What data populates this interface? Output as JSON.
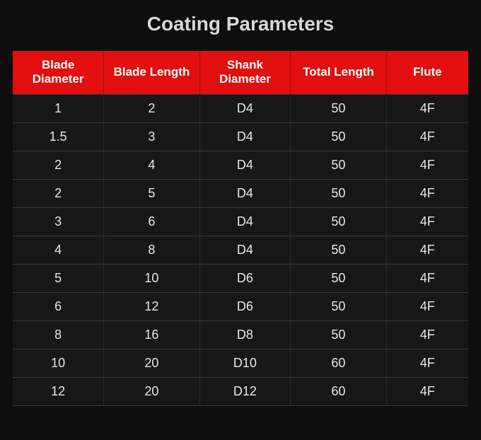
{
  "title": "Coating Parameters",
  "table": {
    "columns": [
      "Blade Diameter",
      "Blade Length",
      "Shank Diameter",
      "Total Length",
      "Flute"
    ],
    "rows": [
      [
        "1",
        "2",
        "D4",
        "50",
        "4F"
      ],
      [
        "1.5",
        "3",
        "D4",
        "50",
        "4F"
      ],
      [
        "2",
        "4",
        "D4",
        "50",
        "4F"
      ],
      [
        "2",
        "5",
        "D4",
        "50",
        "4F"
      ],
      [
        "3",
        "6",
        "D4",
        "50",
        "4F"
      ],
      [
        "4",
        "8",
        "D4",
        "50",
        "4F"
      ],
      [
        "5",
        "10",
        "D6",
        "50",
        "4F"
      ],
      [
        "6",
        "12",
        "D6",
        "50",
        "4F"
      ],
      [
        "8",
        "16",
        "D8",
        "50",
        "4F"
      ],
      [
        "10",
        "20",
        "D10",
        "60",
        "4F"
      ],
      [
        "12",
        "20",
        "D12",
        "60",
        "4F"
      ]
    ],
    "header_bg": "#e10f0f",
    "header_text_color": "#ffffff",
    "body_bg": "#171717",
    "body_text_color": "#e8e8e8",
    "border_color": "#3a3a3a",
    "page_bg": "#0e0e0e",
    "title_color": "#d8d8d8",
    "title_fontsize": 28,
    "header_fontsize": 17,
    "cell_fontsize": 18,
    "column_widths_pct": [
      20,
      21,
      20,
      21,
      18
    ]
  }
}
